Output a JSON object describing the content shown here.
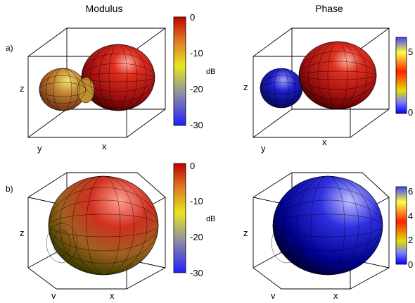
{
  "titles": {
    "left": "Modulus",
    "right": "Phase"
  },
  "chart_data": [
    {
      "type": "surface",
      "panel": "a)",
      "title": "Modulus",
      "axis_labels": {
        "x": "x",
        "y": "y",
        "z": "z"
      },
      "colorbar": {
        "range": [
          -30,
          0
        ],
        "ticks": [
          "0",
          "-10",
          "-20",
          "-30"
        ],
        "unit": "dB",
        "colormap": [
          "#2020ff",
          "#9090a0",
          "#e6e620",
          "#e07020",
          "#c00000"
        ]
      }
    },
    {
      "type": "surface",
      "panel": "a)",
      "title": "Phase",
      "axis_labels": {
        "x": "x",
        "y": "y",
        "z": "z"
      },
      "colorbar": {
        "range": [
          0,
          6.3
        ],
        "ticks": [
          "5",
          "0"
        ],
        "unit": "",
        "colormap": [
          "#0000ff",
          "#8080ff",
          "#e0e000",
          "#ff2000",
          "#ffff40",
          "#4040ff"
        ]
      }
    },
    {
      "type": "surface",
      "panel": "b)",
      "title": "Modulus",
      "axis_labels": {
        "x": "x",
        "y": "v",
        "z": "z"
      },
      "colorbar": {
        "range": [
          -30,
          0
        ],
        "ticks": [
          "0",
          "-10",
          "-20",
          "-30"
        ],
        "unit": "dB",
        "colormap": [
          "#2020ff",
          "#9090a0",
          "#e6e620",
          "#e07020",
          "#c00000"
        ]
      }
    },
    {
      "type": "surface",
      "panel": "b)",
      "title": "Phase",
      "axis_labels": {
        "x": "x",
        "y": "v",
        "z": "z"
      },
      "colorbar": {
        "range": [
          0,
          6.3
        ],
        "ticks": [
          "6",
          "4",
          "2",
          "0"
        ],
        "unit": "",
        "colormap": [
          "#0000ff",
          "#8080ff",
          "#e0e000",
          "#ff2000",
          "#ffff40",
          "#4040ff"
        ]
      }
    }
  ]
}
